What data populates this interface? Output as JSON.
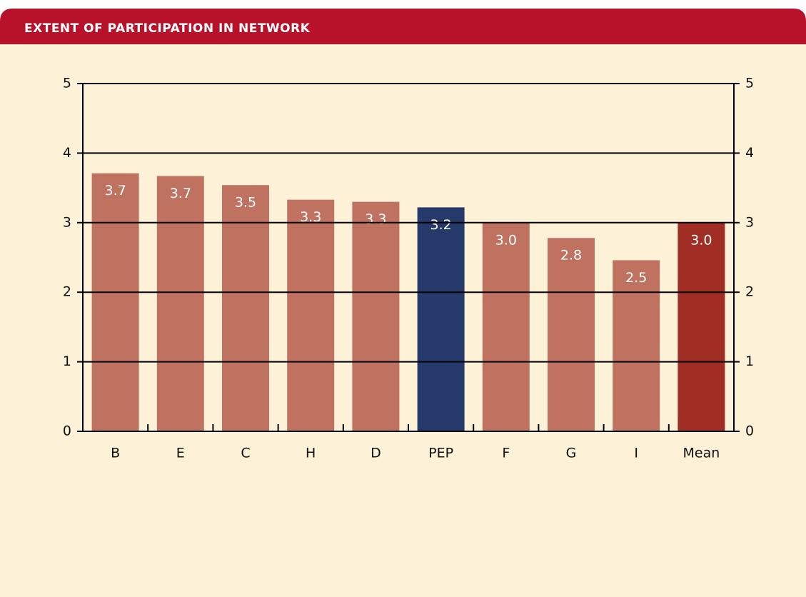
{
  "chart_data": {
    "type": "bar",
    "title": "EXTENT OF PARTICIPATION IN NETWORK",
    "categories": [
      "B",
      "E",
      "C",
      "H",
      "D",
      "PEP",
      "F",
      "G",
      "I",
      "Mean"
    ],
    "values": [
      3.71,
      3.67,
      3.54,
      3.33,
      3.3,
      3.22,
      3.0,
      2.78,
      2.46,
      3.0
    ],
    "value_labels": [
      "3.7",
      "3.7",
      "3.5",
      "3.3",
      "3.3",
      "3.2",
      "3.0",
      "2.8",
      "2.5",
      "3.0"
    ],
    "colors": [
      "#c07260",
      "#c07260",
      "#c07260",
      "#c07260",
      "#c07260",
      "#253a6b",
      "#c07260",
      "#c07260",
      "#c07260",
      "#a02e24"
    ],
    "ylim": [
      0,
      5
    ],
    "yticks": [
      0,
      1,
      2,
      3,
      4,
      5
    ],
    "y2lim": [
      0,
      5
    ],
    "y2ticks": [
      0,
      1,
      2,
      3,
      4,
      5
    ],
    "grid": true
  }
}
